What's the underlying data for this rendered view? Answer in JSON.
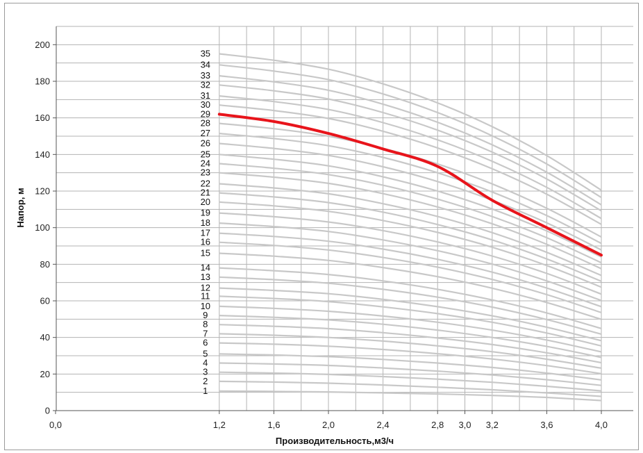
{
  "chart_data": {
    "type": "line",
    "title": "",
    "xlabel": "Производительность,м3/ч",
    "ylabel": "Напор, м",
    "xlim": [
      0.0,
      4.0
    ],
    "ylim": [
      0,
      210
    ],
    "x_ticks": [
      "0,0",
      "1,2",
      "1,6",
      "2,0",
      "2,4",
      "2,8",
      "3,0",
      "3,2",
      "3,6",
      "4,0"
    ],
    "y_ticks": [
      "0",
      "20",
      "40",
      "60",
      "80",
      "100",
      "120",
      "140",
      "160",
      "180",
      "200"
    ],
    "grid": true,
    "highlight_series": "29",
    "x": [
      1.2,
      1.6,
      2.0,
      2.4,
      2.8,
      3.2,
      3.6,
      4.0
    ],
    "series": [
      {
        "name": "1",
        "values": [
          10.7,
          10.5,
          10.2,
          9.7,
          9.1,
          8.3,
          7.2,
          5.5
        ]
      },
      {
        "name": "2",
        "values": [
          16.0,
          15.6,
          15.0,
          14.0,
          12.8,
          11.4,
          9.7,
          7.8
        ]
      },
      {
        "name": "3",
        "values": [
          21.0,
          20.5,
          19.8,
          18.6,
          17.2,
          15.5,
          13.3,
          10.8
        ]
      },
      {
        "name": "4",
        "values": [
          26.0,
          25.5,
          24.7,
          23.3,
          21.6,
          19.5,
          16.9,
          13.8
        ]
      },
      {
        "name": "5",
        "values": [
          31.0,
          30.4,
          29.5,
          28.0,
          26.0,
          23.6,
          20.5,
          16.8
        ]
      },
      {
        "name": "6",
        "values": [
          37.0,
          36.3,
          35.2,
          33.4,
          31.1,
          28.2,
          24.6,
          20.2
        ]
      },
      {
        "name": "7",
        "values": [
          42.0,
          41.2,
          40.0,
          38.0,
          35.4,
          32.2,
          28.1,
          23.2
        ]
      },
      {
        "name": "8",
        "values": [
          47.0,
          46.1,
          44.8,
          42.6,
          39.7,
          36.1,
          31.6,
          26.2
        ]
      },
      {
        "name": "9",
        "values": [
          52.0,
          51.0,
          49.6,
          47.2,
          44.0,
          40.0,
          35.1,
          29.1
        ]
      },
      {
        "name": "10",
        "values": [
          57.0,
          55.9,
          54.3,
          51.7,
          48.3,
          44.0,
          38.6,
          32.1
        ]
      },
      {
        "name": "11",
        "values": [
          62.5,
          61.3,
          59.6,
          56.7,
          53.0,
          48.3,
          42.4,
          35.4
        ]
      },
      {
        "name": "12",
        "values": [
          67.0,
          65.7,
          63.9,
          60.8,
          56.8,
          51.8,
          45.6,
          38.2
        ]
      },
      {
        "name": "13",
        "values": [
          73.0,
          71.6,
          69.6,
          66.3,
          62.0,
          56.6,
          49.8,
          41.8
        ]
      },
      {
        "name": "14",
        "values": [
          78.0,
          76.5,
          74.4,
          70.9,
          66.3,
          60.5,
          53.4,
          44.9
        ]
      },
      {
        "name": "15",
        "values": [
          86.0,
          84.4,
          82.1,
          78.2,
          73.2,
          66.9,
          59.1,
          49.9
        ]
      },
      {
        "name": "16",
        "values": [
          92.0,
          90.3,
          87.8,
          83.7,
          78.4,
          71.7,
          63.4,
          53.6
        ]
      },
      {
        "name": "17",
        "values": [
          97.0,
          95.2,
          92.6,
          88.3,
          82.7,
          75.7,
          67.0,
          56.8
        ]
      },
      {
        "name": "18",
        "values": [
          102.5,
          100.6,
          97.9,
          93.3,
          87.4,
          80.1,
          70.9,
          60.2
        ]
      },
      {
        "name": "19",
        "values": [
          108.0,
          106.0,
          103.1,
          98.4,
          92.2,
          84.5,
          75.0,
          63.7
        ]
      },
      {
        "name": "20",
        "values": [
          114.0,
          111.9,
          108.9,
          103.9,
          97.4,
          89.3,
          79.3,
          67.5
        ]
      },
      {
        "name": "21",
        "values": [
          119.0,
          116.8,
          113.7,
          108.5,
          101.7,
          93.3,
          82.9,
          70.7
        ]
      },
      {
        "name": "22",
        "values": [
          124.0,
          121.7,
          118.5,
          113.1,
          106.1,
          97.3,
          86.5,
          73.9
        ]
      },
      {
        "name": "23",
        "values": [
          130.0,
          127.6,
          124.2,
          118.6,
          111.3,
          102.1,
          90.9,
          77.6
        ]
      },
      {
        "name": "24",
        "values": [
          135.0,
          132.5,
          129.0,
          123.2,
          115.6,
          106.1,
          94.5,
          80.8
        ]
      },
      {
        "name": "25",
        "values": [
          140.0,
          137.4,
          133.8,
          127.8,
          120.0,
          110.2,
          98.2,
          84.0
        ]
      },
      {
        "name": "26",
        "values": [
          146.0,
          143.3,
          139.5,
          133.3,
          125.2,
          115.0,
          102.6,
          87.8
        ]
      },
      {
        "name": "27",
        "values": [
          151.5,
          148.7,
          144.8,
          138.4,
          130.0,
          119.5,
          106.6,
          91.4
        ]
      },
      {
        "name": "28",
        "values": [
          157.0,
          154.1,
          150.0,
          143.4,
          134.8,
          123.9,
          110.6,
          94.9
        ]
      },
      {
        "name": "29",
        "values": [
          162.0,
          158.0,
          151.5,
          143.0,
          133.5,
          115.0,
          100.0,
          85.0
        ]
      },
      {
        "name": "30",
        "values": [
          167.0,
          164.0,
          159.7,
          152.7,
          143.6,
          132.2,
          118.3,
          101.8
        ]
      },
      {
        "name": "31",
        "values": [
          172.0,
          168.9,
          164.6,
          157.4,
          148.0,
          136.3,
          122.0,
          105.0
        ]
      },
      {
        "name": "32",
        "values": [
          178.0,
          174.8,
          170.3,
          162.9,
          153.3,
          141.3,
          126.6,
          109.2
        ]
      },
      {
        "name": "33",
        "values": [
          183.0,
          179.7,
          175.1,
          167.5,
          157.6,
          145.3,
          130.3,
          112.5
        ]
      },
      {
        "name": "34",
        "values": [
          189.0,
          185.6,
          180.9,
          173.1,
          162.9,
          150.2,
          134.8,
          116.5
        ]
      },
      {
        "name": "35",
        "values": [
          195.0,
          191.5,
          186.6,
          178.6,
          168.2,
          155.2,
          139.4,
          120.5
        ]
      }
    ],
    "colors": {
      "curves": "#c8c8c8",
      "highlight": "#e8141b",
      "grid": "#b3b3b3",
      "axis": "#555555"
    }
  }
}
